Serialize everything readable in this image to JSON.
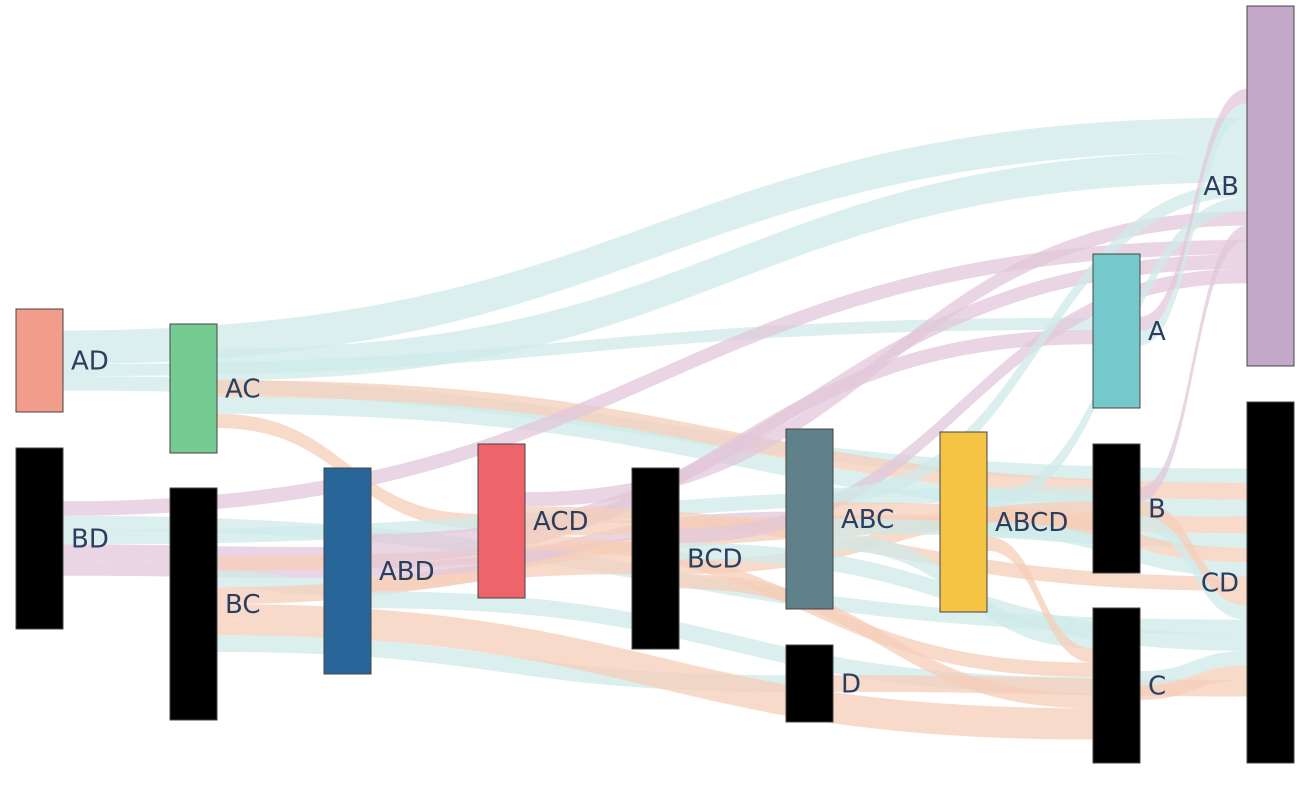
{
  "chart_data": {
    "type": "sankey",
    "colors": {
      "blue_link": "#cfeae9",
      "purple_link": "#e2c7da",
      "peach_link": "#f6cdb8",
      "node_dark": "#000000"
    },
    "nodes": [
      {
        "id": "AD",
        "label": "AD",
        "color": "#f29c8b"
      },
      {
        "id": "BD",
        "label": "BD",
        "color": "#000000"
      },
      {
        "id": "AC",
        "label": "AC",
        "color": "#74cc93"
      },
      {
        "id": "BC",
        "label": "BC",
        "color": "#000000"
      },
      {
        "id": "ABD",
        "label": "ABD",
        "color": "#286599"
      },
      {
        "id": "ACD",
        "label": "ACD",
        "color": "#ef636b"
      },
      {
        "id": "BCD",
        "label": "BCD",
        "color": "#000000"
      },
      {
        "id": "ABC",
        "label": "ABC",
        "color": "#60818a"
      },
      {
        "id": "D",
        "label": "D",
        "color": "#000000"
      },
      {
        "id": "ABCD",
        "label": "ABCD",
        "color": "#f6c444"
      },
      {
        "id": "A",
        "label": "A",
        "color": "#75c8cb"
      },
      {
        "id": "B",
        "label": "B",
        "color": "#000000"
      },
      {
        "id": "C",
        "label": "C",
        "color": "#000000"
      },
      {
        "id": "AB",
        "label": "AB",
        "color": "#c4a8ca"
      },
      {
        "id": "CD",
        "label": "CD",
        "color": "#000000"
      }
    ],
    "links": [
      {
        "source": "AD",
        "target": "AB",
        "value": 16,
        "color": "blue_link"
      },
      {
        "source": "AD",
        "target": "AB",
        "value": 12,
        "color": "blue_link"
      },
      {
        "source": "AD",
        "target": "A",
        "value": 10,
        "color": "blue_link"
      },
      {
        "source": "AD",
        "target": "CD",
        "value": 12,
        "color": "blue_link"
      },
      {
        "source": "AC",
        "target": "AB",
        "value": 14,
        "color": "blue_link"
      },
      {
        "source": "AC",
        "target": "AB",
        "value": 12,
        "color": "blue_link"
      },
      {
        "source": "AC",
        "target": "CD",
        "value": 14,
        "color": "peach_link"
      },
      {
        "source": "AC",
        "target": "ACD",
        "value": 12,
        "color": "peach_link"
      },
      {
        "source": "AC",
        "target": "CD",
        "value": 14,
        "color": "blue_link"
      },
      {
        "source": "BD",
        "target": "AB",
        "value": 12,
        "color": "purple_link"
      },
      {
        "source": "BD",
        "target": "ABD",
        "value": 14,
        "color": "purple_link"
      },
      {
        "source": "BD",
        "target": "B",
        "value": 12,
        "color": "blue_link"
      },
      {
        "source": "BD",
        "target": "ABD",
        "value": 12,
        "color": "purple_link"
      },
      {
        "source": "BD",
        "target": "CD",
        "value": 12,
        "color": "blue_link"
      },
      {
        "source": "BC",
        "target": "ABD",
        "value": 14,
        "color": "blue_link"
      },
      {
        "source": "BC",
        "target": "B",
        "value": 12,
        "color": "peach_link"
      },
      {
        "source": "BC",
        "target": "D",
        "value": 14,
        "color": "blue_link"
      },
      {
        "source": "BC",
        "target": "BCD",
        "value": 14,
        "color": "peach_link"
      },
      {
        "source": "BC",
        "target": "C",
        "value": 14,
        "color": "peach_link"
      },
      {
        "source": "BC",
        "target": "C",
        "value": 12,
        "color": "peach_link"
      },
      {
        "source": "ABD",
        "target": "AB",
        "value": 12,
        "color": "purple_link"
      },
      {
        "source": "ABD",
        "target": "A",
        "value": 12,
        "color": "purple_link"
      },
      {
        "source": "ABD",
        "target": "BCD",
        "value": 12,
        "color": "peach_link"
      },
      {
        "source": "ABD",
        "target": "ABC",
        "value": 12,
        "color": "purple_link"
      },
      {
        "source": "ABD",
        "target": "C",
        "value": 14,
        "color": "blue_link"
      },
      {
        "source": "ACD",
        "target": "AB",
        "value": 12,
        "color": "purple_link"
      },
      {
        "source": "ACD",
        "target": "ABCD",
        "value": 12,
        "color": "peach_link"
      },
      {
        "source": "ACD",
        "target": "CD",
        "value": 12,
        "color": "peach_link"
      },
      {
        "source": "ACD",
        "target": "C",
        "value": 12,
        "color": "peach_link"
      },
      {
        "source": "BCD",
        "target": "AB",
        "value": 12,
        "color": "purple_link"
      },
      {
        "source": "BCD",
        "target": "B",
        "value": 12,
        "color": "peach_link"
      },
      {
        "source": "BCD",
        "target": "CD",
        "value": 14,
        "color": "blue_link"
      },
      {
        "source": "BCD",
        "target": "C",
        "value": 12,
        "color": "peach_link"
      },
      {
        "source": "ABC",
        "target": "AB",
        "value": 12,
        "color": "blue_link"
      },
      {
        "source": "ABC",
        "target": "CD",
        "value": 14,
        "color": "peach_link"
      },
      {
        "source": "ABC",
        "target": "CD",
        "value": 12,
        "color": "blue_link"
      },
      {
        "source": "ABC",
        "target": "C",
        "value": 14,
        "color": "blue_link"
      },
      {
        "source": "D",
        "target": "CD",
        "value": 14,
        "color": "peach_link"
      },
      {
        "source": "ABCD",
        "target": "AB",
        "value": 12,
        "color": "blue_link"
      },
      {
        "source": "ABCD",
        "target": "CD",
        "value": 12,
        "color": "peach_link"
      },
      {
        "source": "ABCD",
        "target": "CD",
        "value": 12,
        "color": "blue_link"
      },
      {
        "source": "ABCD",
        "target": "C",
        "value": 12,
        "color": "peach_link"
      },
      {
        "source": "A",
        "target": "AB",
        "value": 12,
        "color": "purple_link"
      },
      {
        "source": "A",
        "target": "AB",
        "value": 12,
        "color": "blue_link"
      },
      {
        "source": "B",
        "target": "AB",
        "value": 12,
        "color": "purple_link"
      },
      {
        "source": "B",
        "target": "CD",
        "value": 12,
        "color": "peach_link"
      },
      {
        "source": "B",
        "target": "CD",
        "value": 12,
        "color": "blue_link"
      },
      {
        "source": "C",
        "target": "CD",
        "value": 12,
        "color": "blue_link"
      },
      {
        "source": "C",
        "target": "CD",
        "value": 12,
        "color": "peach_link"
      }
    ]
  }
}
